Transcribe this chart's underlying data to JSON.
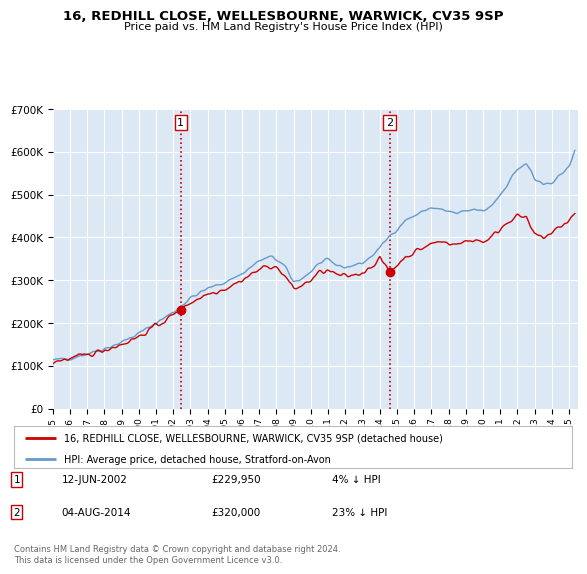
{
  "title": "16, REDHILL CLOSE, WELLESBOURNE, WARWICK, CV35 9SP",
  "subtitle": "Price paid vs. HM Land Registry's House Price Index (HPI)",
  "red_label": "16, REDHILL CLOSE, WELLESBOURNE, WARWICK, CV35 9SP (detached house)",
  "blue_label": "HPI: Average price, detached house, Stratford-on-Avon",
  "transaction1_date": 2002.44,
  "transaction1_price": 229950,
  "transaction2_date": 2014.58,
  "transaction2_price": 320000,
  "ylim": [
    0,
    700000
  ],
  "xlim_start": 1995.0,
  "xlim_end": 2025.5,
  "background_color": "#ffffff",
  "plot_bg_color": "#dce9f5",
  "grid_color": "#ffffff",
  "red_color": "#cc0000",
  "blue_color": "#6699cc",
  "footnote": "Contains HM Land Registry data © Crown copyright and database right 2024.\nThis data is licensed under the Open Government Licence v3.0."
}
